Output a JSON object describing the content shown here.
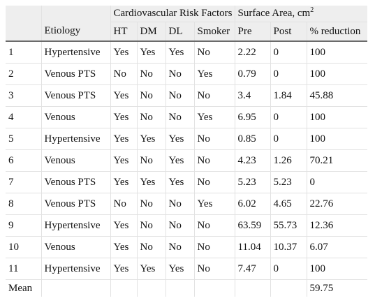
{
  "table": {
    "group_headers": {
      "risk_factors": "Cardiovascular Risk Factors",
      "surface_area": "Surface Area, cm",
      "surface_area_sup": "2"
    },
    "columns": {
      "etiology": "Etiology",
      "ht": "HT",
      "dm": "DM",
      "dl": "DL",
      "smoker": "Smoker",
      "pre": "Pre",
      "post": "Post",
      "reduction": "% reduction"
    },
    "rows": [
      {
        "id": "1",
        "etiology": "Hypertensive",
        "ht": "Yes",
        "dm": "Yes",
        "dl": "Yes",
        "smoker": "No",
        "pre": "2.22",
        "post": "0",
        "reduction": "100"
      },
      {
        "id": "2",
        "etiology": "Venous PTS",
        "ht": "No",
        "dm": "No",
        "dl": "No",
        "smoker": "Yes",
        "pre": "0.79",
        "post": "0",
        "reduction": "100"
      },
      {
        "id": "3",
        "etiology": "Venous PTS",
        "ht": "Yes",
        "dm": "No",
        "dl": "No",
        "smoker": "No",
        "pre": "3.4",
        "post": "1.84",
        "reduction": "45.88"
      },
      {
        "id": "4",
        "etiology": "Venous",
        "ht": "Yes",
        "dm": "No",
        "dl": "No",
        "smoker": "Yes",
        "pre": "6.95",
        "post": "0",
        "reduction": "100"
      },
      {
        "id": "5",
        "etiology": "Hypertensive",
        "ht": "Yes",
        "dm": "Yes",
        "dl": "Yes",
        "smoker": "No",
        "pre": "0.85",
        "post": "0",
        "reduction": "100"
      },
      {
        "id": "6",
        "etiology": "Venous",
        "ht": "Yes",
        "dm": "No",
        "dl": "Yes",
        "smoker": "No",
        "pre": "4.23",
        "post": "1.26",
        "reduction": "70.21"
      },
      {
        "id": "7",
        "etiology": "Venous PTS",
        "ht": "Yes",
        "dm": "Yes",
        "dl": "Yes",
        "smoker": "No",
        "pre": "5.23",
        "post": "5.23",
        "reduction": "0"
      },
      {
        "id": "8",
        "etiology": "Venous PTS",
        "ht": "No",
        "dm": "No",
        "dl": "No",
        "smoker": "Yes",
        "pre": "6.02",
        "post": "4.65",
        "reduction": "22.76"
      },
      {
        "id": "9",
        "etiology": "Hypertensive",
        "ht": "Yes",
        "dm": "No",
        "dl": "No",
        "smoker": "No",
        "pre": "63.59",
        "post": "55.73",
        "reduction": "12.36"
      },
      {
        "id": "10",
        "etiology": "Venous",
        "ht": "Yes",
        "dm": "No",
        "dl": "No",
        "smoker": "No",
        "pre": "11.04",
        "post": "10.37",
        "reduction": "6.07"
      },
      {
        "id": "11",
        "etiology": "Hypertensive",
        "ht": "Yes",
        "dm": "Yes",
        "dl": "Yes",
        "smoker": "No",
        "pre": "7.47",
        "post": "0",
        "reduction": "100"
      }
    ],
    "mean": {
      "label": "Mean",
      "reduction": "59.75"
    }
  }
}
